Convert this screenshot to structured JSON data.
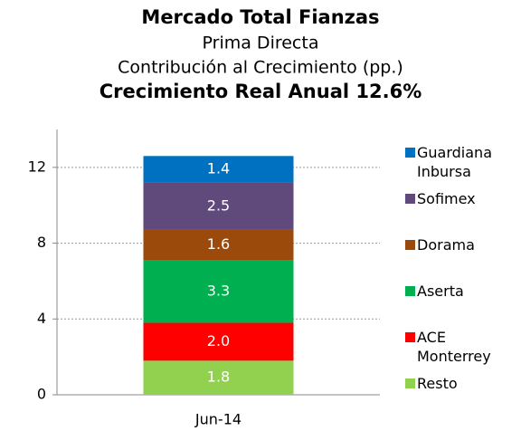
{
  "chart_data": {
    "type": "stacked_bar",
    "title": "Mercado Total Fianzas",
    "subtitle": [
      "Prima Directa",
      "Contribución al Crecimiento  (pp.)"
    ],
    "headline": "Crecimiento Real Anual 12.6%",
    "categories": [
      "Jun-14"
    ],
    "series": [
      {
        "name": "Resto",
        "color": "#92d050",
        "values": [
          1.8
        ],
        "value_labels": [
          "1.8"
        ]
      },
      {
        "name": "ACE Monterrey",
        "color": "#ff0000",
        "values": [
          2.0
        ],
        "value_labels": [
          "2.0"
        ]
      },
      {
        "name": "Aserta",
        "color": "#00b050",
        "values": [
          3.3
        ],
        "value_labels": [
          "3.3"
        ]
      },
      {
        "name": "Dorama",
        "color": "#9c4a0c",
        "values": [
          1.6
        ],
        "value_labels": [
          "1.6"
        ]
      },
      {
        "name": "Sofimex",
        "color": "#604a7b",
        "values": [
          2.5
        ],
        "value_labels": [
          "2.5"
        ]
      },
      {
        "name": "Guardiana Inbursa",
        "color": "#0070c0",
        "values": [
          1.4
        ],
        "value_labels": [
          "1.4"
        ]
      }
    ],
    "ylim": [
      0,
      14
    ],
    "yticks": [
      0,
      4,
      8,
      12
    ],
    "grid": true,
    "legend": "right"
  }
}
